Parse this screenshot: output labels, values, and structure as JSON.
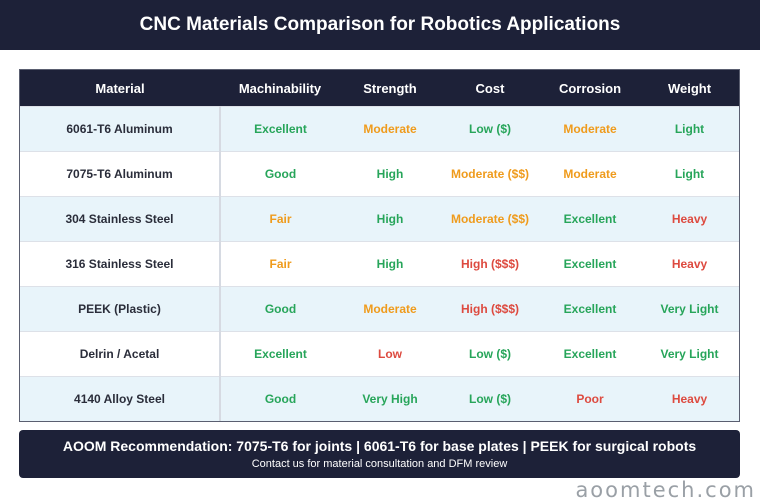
{
  "title": "CNC Materials Comparison for Robotics Applications",
  "columns": [
    "Material",
    "Machinability",
    "Strength",
    "Cost",
    "Corrosion",
    "Weight"
  ],
  "colors": {
    "good": "#27a55a",
    "medium": "#ef9b1c",
    "bad": "#dd4a3f",
    "header": "#1d2138",
    "row_alt": "#e8f4fa"
  },
  "rows": [
    {
      "material": "6061-T6 Aluminum",
      "cells": [
        {
          "text": "Excellent",
          "rating": "good"
        },
        {
          "text": "Moderate",
          "rating": "medium"
        },
        {
          "text": "Low ($)",
          "rating": "good"
        },
        {
          "text": "Moderate",
          "rating": "medium"
        },
        {
          "text": "Light",
          "rating": "good"
        }
      ]
    },
    {
      "material": "7075-T6 Aluminum",
      "cells": [
        {
          "text": "Good",
          "rating": "good"
        },
        {
          "text": "High",
          "rating": "good"
        },
        {
          "text": "Moderate ($$)",
          "rating": "medium"
        },
        {
          "text": "Moderate",
          "rating": "medium"
        },
        {
          "text": "Light",
          "rating": "good"
        }
      ]
    },
    {
      "material": "304 Stainless Steel",
      "cells": [
        {
          "text": "Fair",
          "rating": "medium"
        },
        {
          "text": "High",
          "rating": "good"
        },
        {
          "text": "Moderate ($$)",
          "rating": "medium"
        },
        {
          "text": "Excellent",
          "rating": "good"
        },
        {
          "text": "Heavy",
          "rating": "bad"
        }
      ]
    },
    {
      "material": "316 Stainless Steel",
      "cells": [
        {
          "text": "Fair",
          "rating": "medium"
        },
        {
          "text": "High",
          "rating": "good"
        },
        {
          "text": "High ($$$)",
          "rating": "bad"
        },
        {
          "text": "Excellent",
          "rating": "good"
        },
        {
          "text": "Heavy",
          "rating": "bad"
        }
      ]
    },
    {
      "material": "PEEK (Plastic)",
      "cells": [
        {
          "text": "Good",
          "rating": "good"
        },
        {
          "text": "Moderate",
          "rating": "medium"
        },
        {
          "text": "High ($$$)",
          "rating": "bad"
        },
        {
          "text": "Excellent",
          "rating": "good"
        },
        {
          "text": "Very Light",
          "rating": "good"
        }
      ]
    },
    {
      "material": "Delrin / Acetal",
      "cells": [
        {
          "text": "Excellent",
          "rating": "good"
        },
        {
          "text": "Low",
          "rating": "bad"
        },
        {
          "text": "Low ($)",
          "rating": "good"
        },
        {
          "text": "Excellent",
          "rating": "good"
        },
        {
          "text": "Very Light",
          "rating": "good"
        }
      ]
    },
    {
      "material": "4140 Alloy Steel",
      "cells": [
        {
          "text": "Good",
          "rating": "good"
        },
        {
          "text": "Very High",
          "rating": "good"
        },
        {
          "text": "Low ($)",
          "rating": "good"
        },
        {
          "text": "Poor",
          "rating": "bad"
        },
        {
          "text": "Heavy",
          "rating": "bad"
        }
      ]
    }
  ],
  "footer": {
    "recommendation": "AOOM Recommendation: 7075-T6 for joints | 6061-T6 for base plates | PEEK for surgical robots",
    "contact": "Contact us for material consultation and DFM review"
  },
  "brand": "aoomtech.com"
}
